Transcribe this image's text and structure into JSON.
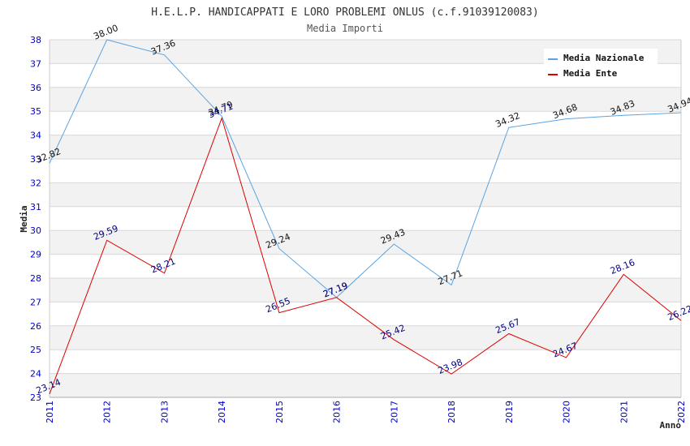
{
  "chart_data": {
    "type": "line",
    "title": "H.E.L.P. HANDICAPPATI E LORO PROBLEMI ONLUS (c.f.91039120083)",
    "subtitle": "Media Importi",
    "xlabel": "Anno",
    "ylabel": "Media",
    "ylim": [
      23,
      38
    ],
    "yticks": [
      "23",
      "24",
      "25",
      "26",
      "27",
      "28",
      "29",
      "30",
      "31",
      "32",
      "33",
      "34",
      "35",
      "36",
      "37",
      "38"
    ],
    "categories": [
      "2011",
      "2012",
      "2013",
      "2014",
      "2015",
      "2016",
      "2017",
      "2018",
      "2019",
      "2020",
      "2021",
      "2022"
    ],
    "grid": true,
    "legend_position": "top-right",
    "series": [
      {
        "name": "Media Nazionale",
        "color": "#5ba3e0",
        "label_color": "#111111",
        "values": [
          32.82,
          38.0,
          37.36,
          34.79,
          29.24,
          27.19,
          29.43,
          27.71,
          34.32,
          34.68,
          34.83,
          34.94
        ],
        "labels": [
          "32.82",
          "38.00",
          "37.36",
          "34.79",
          "29.24",
          "27.19",
          "29.43",
          "27.71",
          "34.32",
          "34.68",
          "34.83",
          "34.94"
        ]
      },
      {
        "name": "Media Ente",
        "color": "#dd0000",
        "label_color": "#000080",
        "values": [
          23.14,
          29.59,
          28.21,
          34.71,
          26.55,
          27.19,
          25.42,
          23.98,
          25.67,
          24.67,
          28.16,
          26.22
        ],
        "labels": [
          "23.14",
          "29.59",
          "28.21",
          "34.71",
          "26.55",
          "27.19",
          "25.42",
          "23.98",
          "25.67",
          "24.67",
          "28.16",
          "26.22"
        ]
      }
    ]
  }
}
